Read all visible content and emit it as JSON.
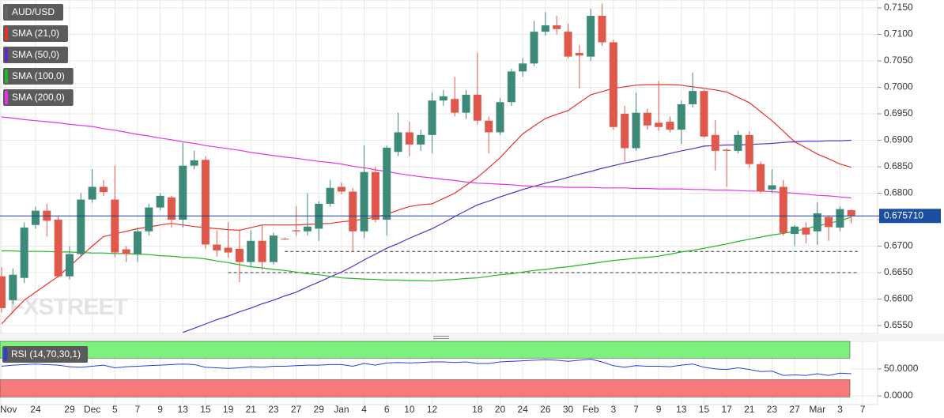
{
  "chart_data": {
    "type": "candlestick",
    "title": "AUD/USD",
    "up_color": "#3d8a78",
    "down_color": "#e0584c",
    "categories": [
      "Nov",
      null,
      null,
      "24",
      null,
      null,
      "29",
      null,
      "Dec",
      null,
      "5",
      null,
      "7",
      null,
      "9",
      null,
      "13",
      null,
      "15",
      null,
      "19",
      null,
      "21",
      null,
      "23",
      null,
      "27",
      null,
      "29",
      null,
      "Jan",
      null,
      "4",
      null,
      "6",
      null,
      "10",
      null,
      "12",
      null,
      null,
      null,
      "18",
      null,
      "20",
      null,
      "24",
      null,
      "26",
      null,
      "30",
      null,
      "Feb",
      null,
      "3",
      null,
      "7",
      null,
      "9",
      null,
      "13",
      null,
      "15",
      null,
      "17",
      null,
      "21",
      null,
      "23",
      null,
      "27",
      null,
      "Mar",
      null,
      "3",
      null,
      "7"
    ],
    "open": [
      0.6643,
      0.6598,
      0.664,
      0.674,
      0.6767,
      0.675,
      0.6643,
      0.6685,
      0.6788,
      0.6812,
      0.6788,
      0.6694,
      0.6685,
      0.6728,
      0.6773,
      0.6792,
      0.675,
      0.6852,
      0.6863,
      0.6703,
      0.6697,
      0.6695,
      0.667,
      0.671,
      0.667,
      0.6714,
      0.673,
      0.6728,
      0.6733,
      0.678,
      0.6812,
      0.6803,
      0.6728,
      0.684,
      0.675,
      0.6878,
      0.6915,
      0.6892,
      0.691,
      0.6975,
      0.6978,
      0.6952,
      0.6986,
      0.6937,
      0.6915,
      0.6972,
      0.703,
      0.7045,
      0.7105,
      0.7117,
      0.7105,
      0.7065,
      0.7058,
      0.7135,
      0.7085,
      0.695,
      0.6885,
      0.6952,
      0.6933,
      0.6935,
      0.692,
      0.6968,
      0.6993,
      0.691,
      0.6882,
      0.688,
      0.691,
      0.6855,
      0.6807,
      0.6812,
      0.6723,
      0.6735,
      0.6728,
      0.6755,
      0.6735,
      0.6768,
      null
    ],
    "high": [
      0.666,
      0.6658,
      0.6745,
      0.6775,
      0.678,
      0.6758,
      0.67,
      0.68,
      0.6845,
      0.6825,
      0.6852,
      0.67,
      0.6735,
      0.678,
      0.68,
      0.6795,
      0.6895,
      0.688,
      0.687,
      0.673,
      0.6745,
      0.673,
      0.673,
      0.674,
      0.6725,
      0.6716,
      0.6775,
      0.68,
      0.6785,
      0.6825,
      0.682,
      0.681,
      0.689,
      0.685,
      0.689,
      0.6952,
      0.6935,
      0.692,
      0.699,
      0.6995,
      0.702,
      0.6995,
      0.7065,
      0.6945,
      0.698,
      0.7035,
      0.7055,
      0.7125,
      0.7142,
      0.7135,
      0.712,
      0.708,
      0.7148,
      0.7158,
      0.709,
      0.6965,
      0.699,
      0.696,
      0.7012,
      0.6945,
      0.6975,
      0.7028,
      0.6995,
      0.6938,
      0.6885,
      0.6918,
      0.6917,
      0.686,
      0.6845,
      0.6825,
      0.674,
      0.6745,
      0.6783,
      0.6758,
      0.6775,
      0.677,
      null
    ],
    "low": [
      0.6575,
      0.659,
      0.663,
      0.6733,
      0.6718,
      0.664,
      0.6637,
      0.668,
      0.6782,
      0.6795,
      0.668,
      0.667,
      0.667,
      0.672,
      0.6768,
      0.6735,
      0.6735,
      0.6845,
      0.6695,
      0.668,
      0.6678,
      0.6632,
      0.666,
      0.6655,
      0.6665,
      0.6712,
      0.672,
      0.672,
      0.671,
      0.6775,
      0.6798,
      0.669,
      0.6715,
      0.6745,
      0.672,
      0.687,
      0.687,
      0.688,
      0.6876,
      0.6965,
      0.6945,
      0.694,
      0.693,
      0.6875,
      0.691,
      0.6965,
      0.702,
      0.704,
      0.7098,
      0.71,
      0.7055,
      0.6998,
      0.705,
      0.7078,
      0.692,
      0.686,
      0.688,
      0.692,
      0.6918,
      0.6915,
      0.6893,
      0.6962,
      0.6905,
      0.6843,
      0.6812,
      0.6875,
      0.6848,
      0.68,
      0.68,
      0.672,
      0.67,
      0.6705,
      0.6702,
      0.671,
      0.6728,
      0.6743,
      null
    ],
    "close": [
      0.6583,
      0.6646,
      0.6735,
      0.6767,
      0.6748,
      0.6643,
      0.6685,
      0.6788,
      0.6812,
      0.6802,
      0.6688,
      0.6685,
      0.6728,
      0.6773,
      0.6795,
      0.675,
      0.6852,
      0.6862,
      0.6703,
      0.6692,
      0.6688,
      0.667,
      0.671,
      0.667,
      0.672,
      0.6713,
      0.6728,
      0.6737,
      0.678,
      0.681,
      0.6803,
      0.6728,
      0.684,
      0.675,
      0.6886,
      0.6915,
      0.6892,
      0.691,
      0.6975,
      0.6983,
      0.6952,
      0.6986,
      0.6937,
      0.6915,
      0.6972,
      0.703,
      0.7045,
      0.7105,
      0.7117,
      0.711,
      0.7058,
      0.706,
      0.7135,
      0.7085,
      0.6925,
      0.6885,
      0.6952,
      0.6928,
      0.6925,
      0.692,
      0.6968,
      0.6993,
      0.6907,
      0.688,
      0.688,
      0.691,
      0.6855,
      0.6803,
      0.6815,
      0.6725,
      0.6737,
      0.6722,
      0.6762,
      0.6736,
      0.677,
      0.6757,
      null
    ],
    "series": [
      {
        "name": "SMA (21,0)",
        "color": "#e8302a",
        "values": [
          0.6553,
          0.6576,
          0.6598,
          0.6613,
          0.6628,
          0.6643,
          0.6662,
          0.6681,
          0.67,
          0.6718,
          0.6723,
          0.6728,
          0.6733,
          0.6736,
          0.674,
          0.6743,
          0.674,
          0.6737,
          0.6735,
          0.6733,
          0.6731,
          0.673,
          0.6735,
          0.674,
          0.674,
          0.674,
          0.674,
          0.6741,
          0.6742,
          0.6743,
          0.6746,
          0.6748,
          0.6751,
          0.6755,
          0.676,
          0.6768,
          0.6775,
          0.6778,
          0.678,
          0.679,
          0.68,
          0.6815,
          0.683,
          0.6848,
          0.6867,
          0.689,
          0.6912,
          0.6927,
          0.6941,
          0.6949,
          0.6956,
          0.6971,
          0.6986,
          0.6992,
          0.6998,
          0.7001,
          0.7004,
          0.7005,
          0.7005,
          0.7005,
          0.7004,
          0.7001,
          0.6998,
          0.6995,
          0.6991,
          0.6981,
          0.6971,
          0.6954,
          0.6937,
          0.6917,
          0.6897,
          0.6886,
          0.6874,
          0.6865,
          0.6855,
          0.6849,
          null
        ]
      },
      {
        "name": "SMA (50,0)",
        "color": "#5b2bc9",
        "values": [
          null,
          null,
          null,
          null,
          null,
          null,
          null,
          null,
          null,
          null,
          null,
          null,
          null,
          null,
          null,
          null,
          0.6537,
          0.6545,
          0.6553,
          0.6561,
          0.6568,
          0.6576,
          0.6583,
          0.6591,
          0.6598,
          0.6606,
          0.6613,
          0.6623,
          0.6632,
          0.6642,
          0.6651,
          0.6662,
          0.6674,
          0.6685,
          0.6696,
          0.6705,
          0.6715,
          0.6724,
          0.6733,
          0.6744,
          0.6756,
          0.6767,
          0.6778,
          0.6785,
          0.6793,
          0.68,
          0.6807,
          0.6813,
          0.6819,
          0.6824,
          0.683,
          0.6836,
          0.6841,
          0.6847,
          0.6852,
          0.6857,
          0.6861,
          0.6866,
          0.687,
          0.6875,
          0.688,
          0.6884,
          0.6889,
          0.689,
          0.6891,
          0.6891,
          0.6892,
          0.6893,
          0.6894,
          0.6896,
          0.6897,
          0.6898,
          0.6898,
          0.6899,
          0.6899,
          0.69,
          null
        ]
      },
      {
        "name": "SMA (100,0)",
        "color": "#1fb81f",
        "values": [
          0.6691,
          0.6691,
          0.669,
          0.669,
          0.669,
          0.6689,
          0.6689,
          0.6688,
          0.6687,
          0.6687,
          0.6686,
          0.6686,
          0.6685,
          0.6684,
          0.6682,
          0.6681,
          0.6679,
          0.6678,
          0.6676,
          0.6672,
          0.6669,
          0.6665,
          0.6661,
          0.6659,
          0.6656,
          0.6654,
          0.6651,
          0.6648,
          0.6646,
          0.6643,
          0.664,
          0.6639,
          0.6638,
          0.6637,
          0.6636,
          0.6636,
          0.6635,
          0.6635,
          0.6634,
          0.6636,
          0.6637,
          0.6639,
          0.664,
          0.6643,
          0.6646,
          0.6648,
          0.6651,
          0.6654,
          0.6656,
          0.6659,
          0.6661,
          0.6664,
          0.6667,
          0.667,
          0.6673,
          0.6675,
          0.6677,
          0.6679,
          0.6681,
          0.6685,
          0.6689,
          0.6692,
          0.6696,
          0.67,
          0.6704,
          0.6709,
          0.6713,
          0.6717,
          0.6721,
          0.6724,
          0.6728,
          0.6733,
          0.6738,
          0.6743,
          0.6748,
          0.6755,
          null
        ]
      },
      {
        "name": "SMA (200,0)",
        "color": "#e632e6",
        "values": [
          0.6944,
          0.6942,
          0.6939,
          0.6937,
          0.6935,
          0.6933,
          0.693,
          0.6928,
          0.6926,
          0.6922,
          0.6919,
          0.6915,
          0.6911,
          0.6908,
          0.6904,
          0.6901,
          0.6897,
          0.6894,
          0.689,
          0.6887,
          0.6884,
          0.6881,
          0.6877,
          0.6874,
          0.6871,
          0.6868,
          0.6866,
          0.6863,
          0.686,
          0.6858,
          0.6855,
          0.6851,
          0.6848,
          0.6844,
          0.6841,
          0.6837,
          0.6834,
          0.6831,
          0.6829,
          0.6826,
          0.6824,
          0.6821,
          0.6819,
          0.6818,
          0.6817,
          0.6816,
          0.6814,
          0.6813,
          0.6812,
          0.6812,
          0.6811,
          0.6811,
          0.6811,
          0.681,
          0.681,
          0.681,
          0.6809,
          0.6809,
          0.6808,
          0.6808,
          0.6808,
          0.6807,
          0.6807,
          0.6806,
          0.6806,
          0.6805,
          0.6804,
          0.6804,
          0.6803,
          0.6801,
          0.68,
          0.6798,
          0.6796,
          0.6795,
          0.6793,
          0.6791,
          null
        ]
      }
    ],
    "ylim": [
      0.65351,
      0.71649
    ],
    "yticks": [
      {
        "value": 0.655,
        "label": "0.6550"
      },
      {
        "value": 0.66,
        "label": "0.6600"
      },
      {
        "value": 0.665,
        "label": "0.6650"
      },
      {
        "value": 0.67,
        "label": "0.6700"
      },
      {
        "value": 0.675,
        "label": "0.6750"
      },
      {
        "value": 0.68,
        "label": "0.6800"
      },
      {
        "value": 0.685,
        "label": "0.6850"
      },
      {
        "value": 0.69,
        "label": "0.6900"
      },
      {
        "value": 0.695,
        "label": "0.6950"
      },
      {
        "value": 0.7,
        "label": "0.7000"
      },
      {
        "value": 0.705,
        "label": "0.7050"
      },
      {
        "value": 0.71,
        "label": "0.7100"
      },
      {
        "value": 0.715,
        "label": "0.7150"
      }
    ],
    "grid": true,
    "last_price": {
      "value": 0.67571,
      "label": "0.675710"
    },
    "levels": [
      0.669,
      0.665
    ],
    "watermark": "FXSTREET",
    "rsi": {
      "name": "RSI (14,70,30,1)",
      "color": "#2a3fd6",
      "overbought": 70,
      "oversold": 30,
      "values": [
        55,
        57,
        58,
        59,
        58,
        57,
        54,
        53,
        55,
        57,
        52,
        54,
        55,
        56,
        57,
        58,
        59,
        58,
        53,
        52,
        51,
        52,
        54,
        53,
        55,
        55,
        56,
        57,
        57,
        58,
        58,
        55,
        60,
        57,
        61,
        62,
        61,
        62,
        63,
        63,
        62,
        63,
        60,
        60,
        63,
        64,
        65,
        66,
        67,
        66,
        64,
        66,
        68,
        63,
        56,
        53,
        56,
        55,
        55,
        54,
        57,
        59,
        53,
        50,
        49,
        52,
        49,
        45,
        46,
        38,
        39,
        38,
        41,
        38,
        42,
        41,
        null
      ],
      "ylim": [
        -16,
        101
      ],
      "yticks": [
        {
          "value": 0,
          "label": "0.0000"
        },
        {
          "value": 50,
          "label": "50.0000"
        }
      ]
    }
  }
}
